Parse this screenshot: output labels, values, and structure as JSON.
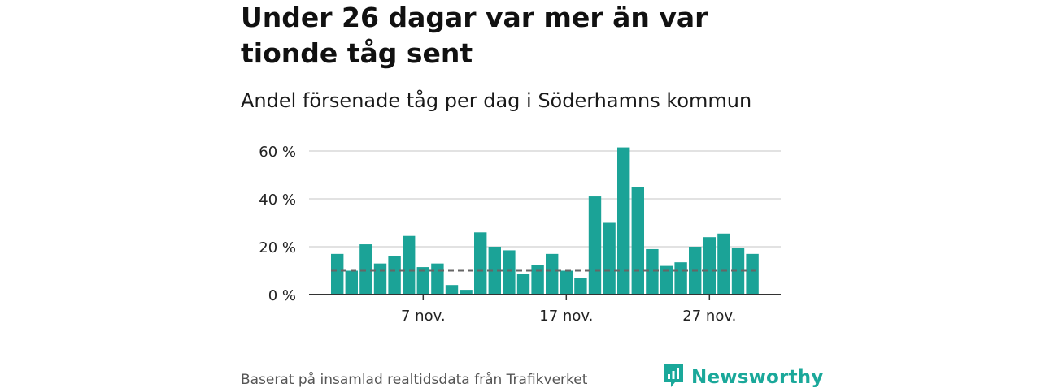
{
  "title": "Under 26 dagar var mer än var tionde tåg sent",
  "subtitle": "Andel försenade tåg per dag i Söderhamns kommun",
  "source": "Baserat på insamlad realtidsdata från Trafikverket",
  "brand": {
    "name": "Newsworthy",
    "icon": "newsworthy-logo-icon",
    "color": "#1aa89a"
  },
  "colors": {
    "bar": "#1ba397",
    "reference": "#666666",
    "grid": "#d9d9d9",
    "axis": "#333333"
  },
  "chart_data": {
    "type": "bar",
    "x": [
      "1 nov.",
      "2 nov.",
      "3 nov.",
      "4 nov.",
      "5 nov.",
      "6 nov.",
      "7 nov.",
      "8 nov.",
      "9 nov.",
      "10 nov.",
      "11 nov.",
      "12 nov.",
      "13 nov.",
      "14 nov.",
      "15 nov.",
      "16 nov.",
      "17 nov.",
      "18 nov.",
      "19 nov.",
      "20 nov.",
      "21 nov.",
      "22 nov.",
      "23 nov.",
      "24 nov.",
      "25 nov.",
      "26 nov.",
      "27 nov.",
      "28 nov.",
      "29 nov.",
      "30 nov."
    ],
    "values": [
      17,
      10,
      21,
      13,
      16,
      24.5,
      11.5,
      13,
      4,
      2,
      26,
      20,
      18.5,
      8.5,
      12.5,
      17,
      10,
      7,
      41,
      30,
      61.5,
      45,
      19,
      12,
      13.5,
      20,
      24,
      25.5,
      19.5,
      17
    ],
    "reference_line": {
      "value": 10,
      "style": "dashed"
    },
    "ylim": [
      0,
      60
    ],
    "yticks": [
      0,
      20,
      40,
      60
    ],
    "ytick_labels": [
      "0 %",
      "20 %",
      "40 %",
      "60 %"
    ],
    "xtick_labels": [
      {
        "index": 6,
        "label": "7 nov."
      },
      {
        "index": 16,
        "label": "17 nov."
      },
      {
        "index": 26,
        "label": "27 nov."
      }
    ],
    "xlabel": "",
    "ylabel": "",
    "grid": true
  }
}
